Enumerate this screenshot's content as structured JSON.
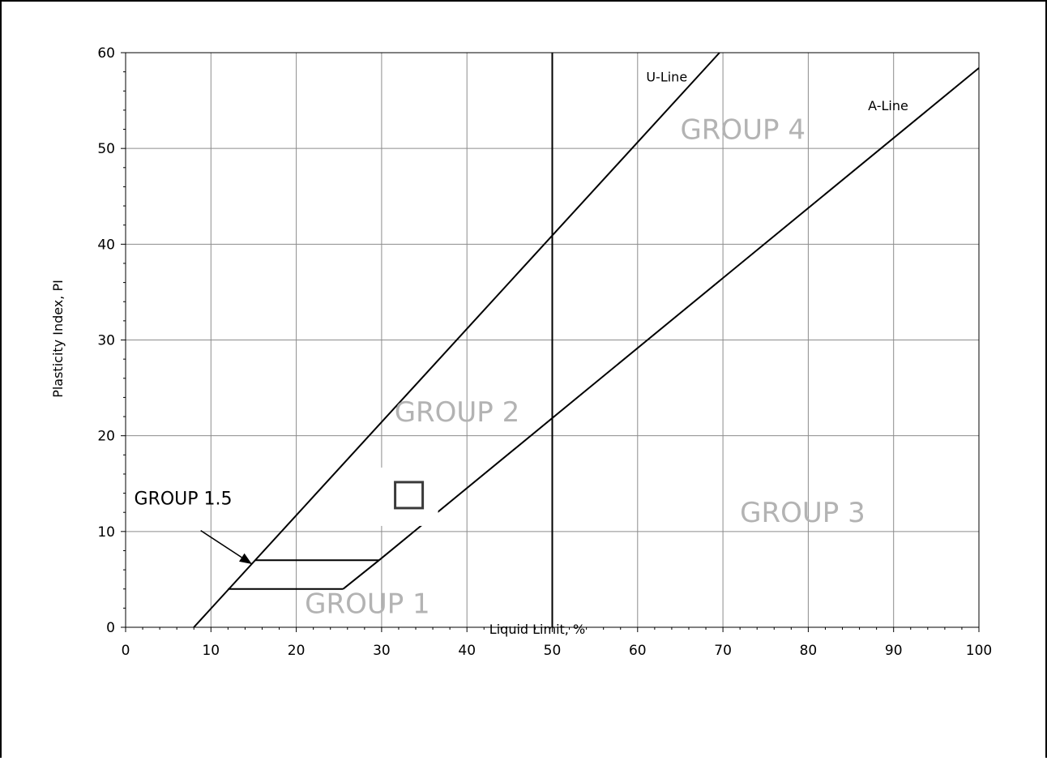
{
  "chart_data": {
    "type": "line",
    "xlabel": "Liquid Limit, %",
    "ylabel": "Plasticity Index, PI",
    "xlim": [
      0,
      100
    ],
    "ylim": [
      0,
      60
    ],
    "x_ticks": [
      0,
      10,
      20,
      30,
      40,
      50,
      60,
      70,
      80,
      90,
      100
    ],
    "y_ticks": [
      0,
      10,
      20,
      30,
      40,
      50,
      60
    ],
    "grid": true,
    "series": [
      {
        "name": "U-Line",
        "color": "#000000",
        "points": [
          [
            8,
            0
          ],
          [
            69.6,
            60
          ]
        ]
      },
      {
        "name": "A-Line",
        "color": "#000000",
        "points": [
          [
            25.5,
            4
          ],
          [
            29.7,
            7
          ],
          [
            100,
            58.4
          ]
        ]
      },
      {
        "name": "",
        "color": "#000000",
        "points": [
          [
            12,
            4
          ],
          [
            25.5,
            4
          ]
        ]
      },
      {
        "name": "",
        "color": "#000000",
        "points": [
          [
            15.2,
            7
          ],
          [
            29.7,
            7
          ]
        ]
      },
      {
        "name": "",
        "color": "#000000",
        "points": [
          [
            50,
            0
          ],
          [
            50,
            60
          ]
        ]
      }
    ],
    "line_labels": [
      {
        "text": "U-Line",
        "x": 61,
        "y": 57
      },
      {
        "text": "A-Line",
        "x": 87,
        "y": 54
      }
    ],
    "regions": [
      {
        "text": "GROUP 4",
        "x": 65,
        "y": 51,
        "color": "#b3b3b3"
      },
      {
        "text": "GROUP 2",
        "x": 31.5,
        "y": 21.5,
        "color": "#b3b3b3"
      },
      {
        "text": "GROUP 3",
        "x": 72,
        "y": 11,
        "color": "#b3b3b3"
      },
      {
        "text": "GROUP 1",
        "x": 21,
        "y": 1.5,
        "color": "#b3b3b3"
      }
    ],
    "callout": {
      "text": "GROUP 1.5",
      "label_x": 1,
      "label_y": 12.8,
      "arrow_from": [
        8.8,
        10.1
      ],
      "arrow_to": [
        14.8,
        6.6
      ]
    },
    "marker": {
      "shape": "square",
      "x": 33.2,
      "y": 13.8
    }
  }
}
